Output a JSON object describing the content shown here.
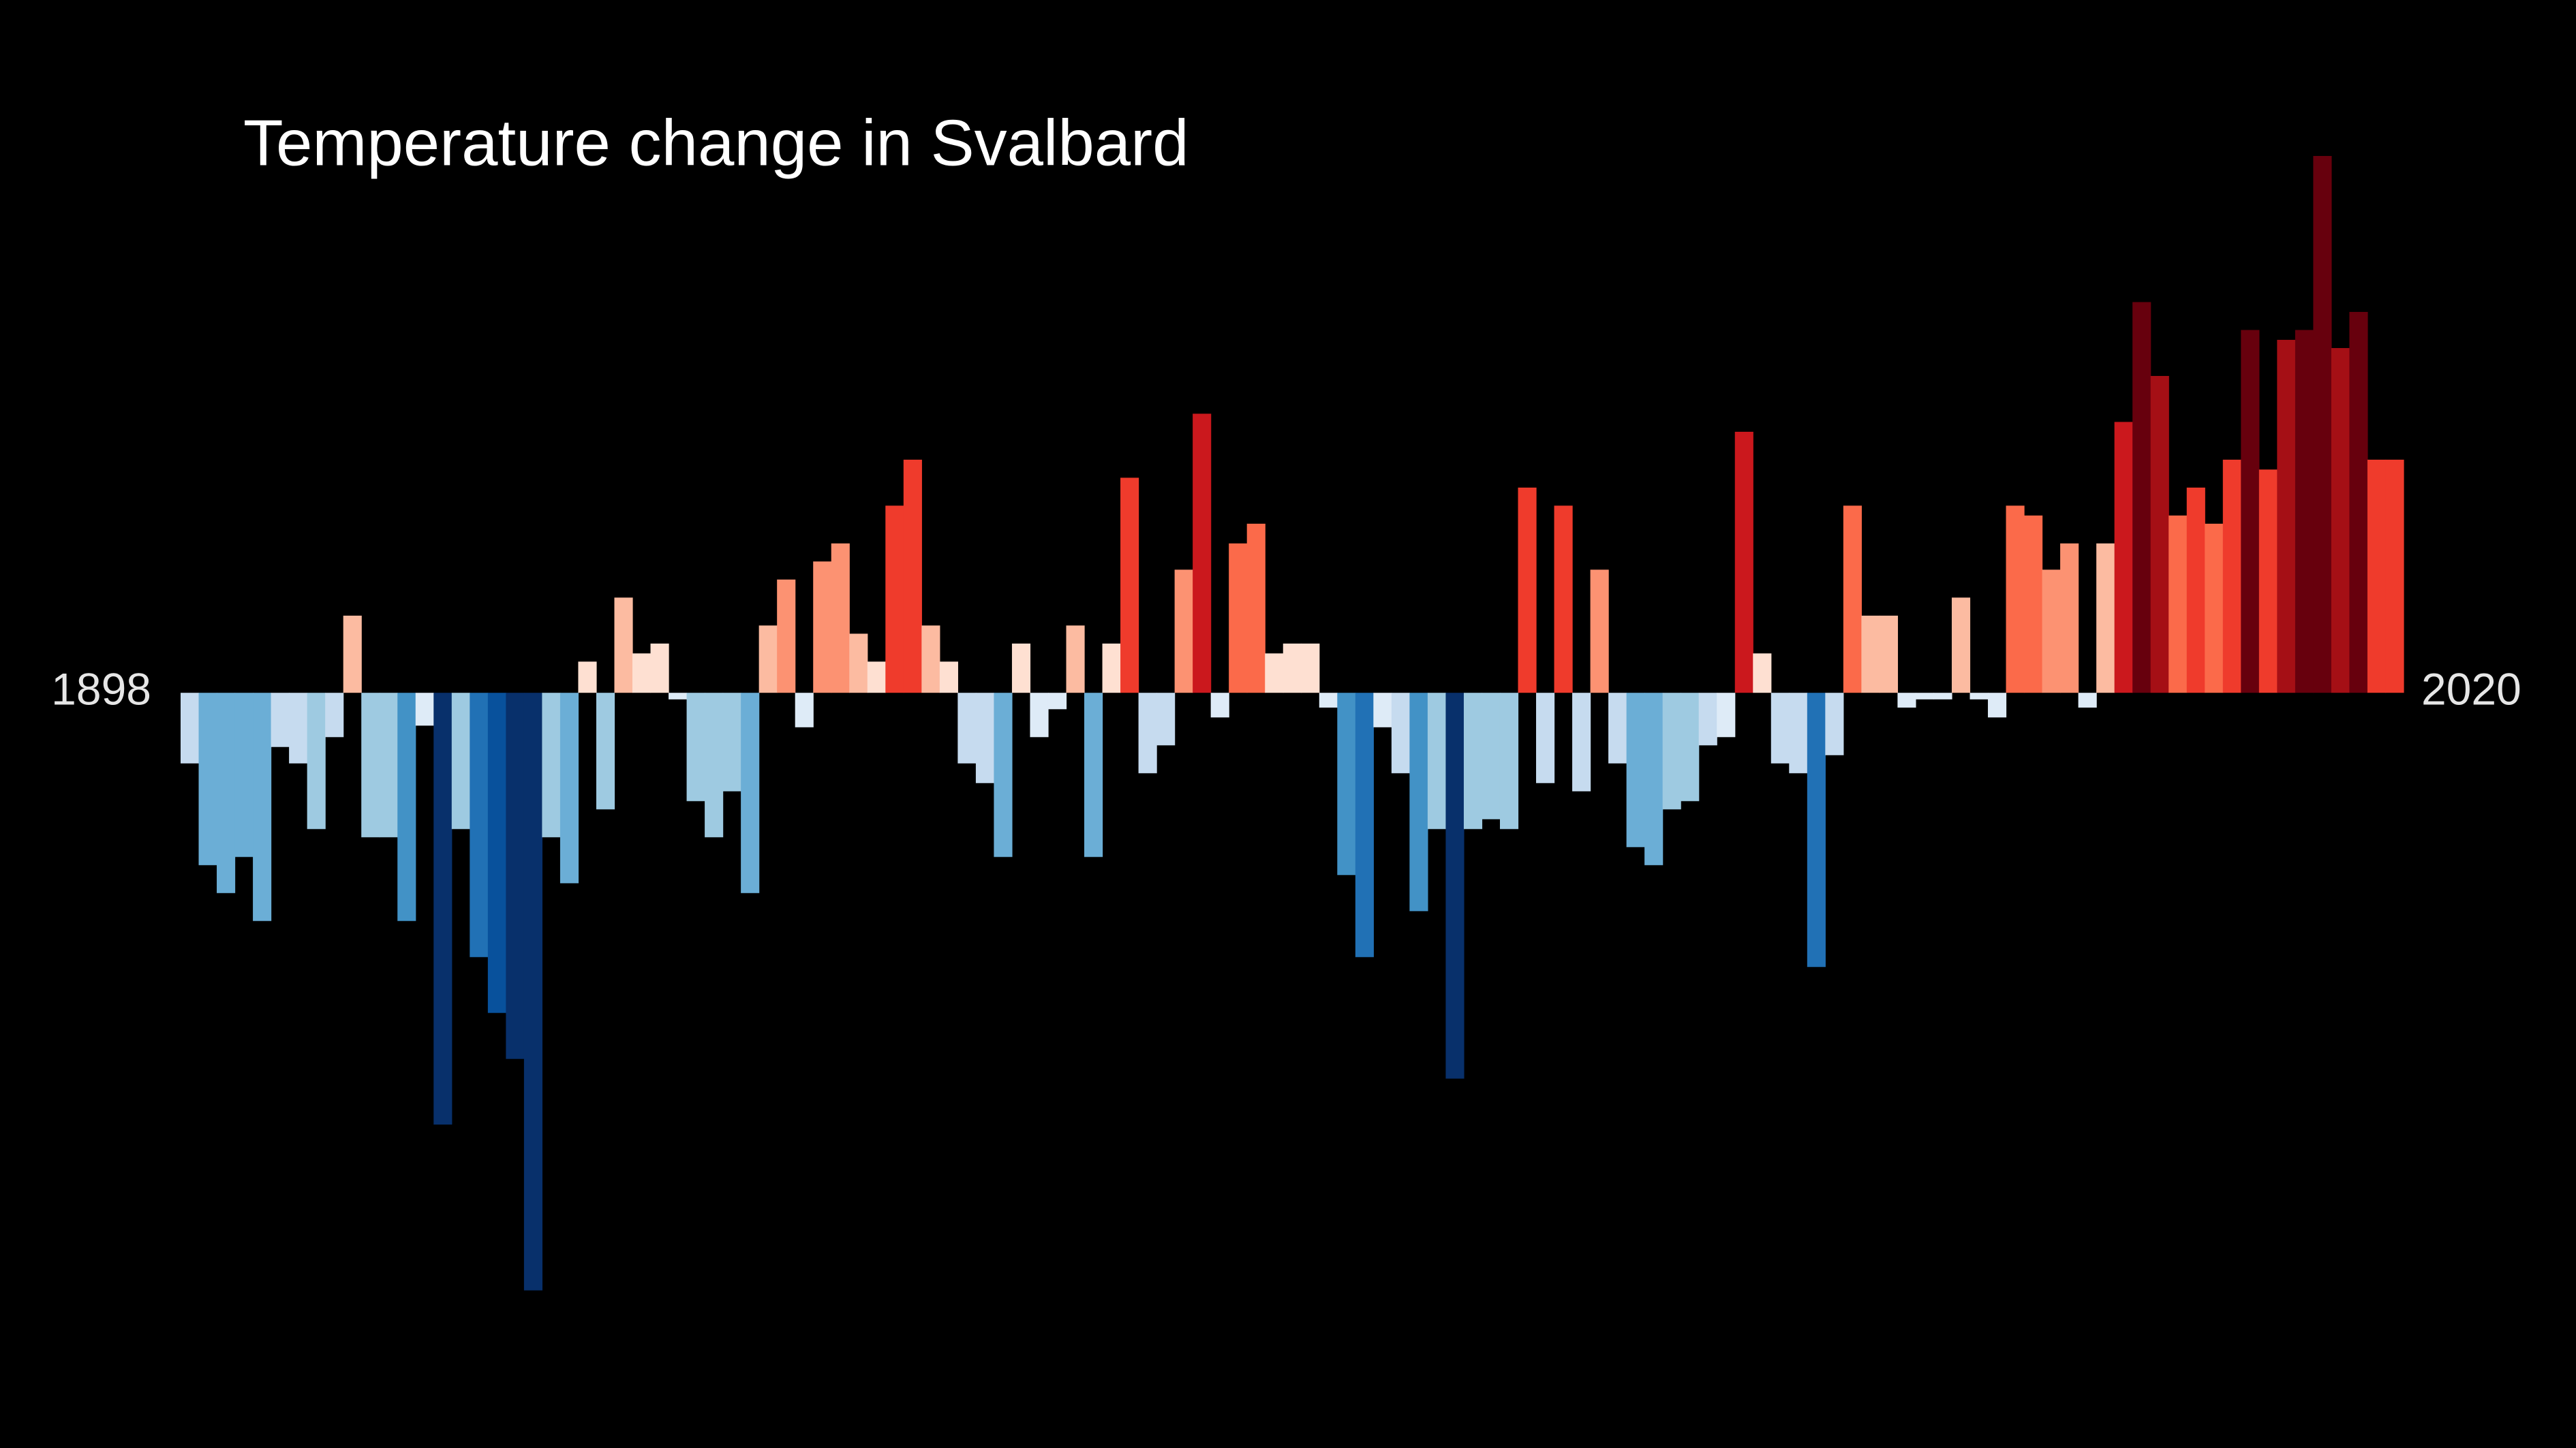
{
  "chart_data": {
    "type": "bar",
    "title": "Temperature change in Svalbard",
    "categories": [
      "1898",
      null,
      null,
      null,
      null,
      null,
      null,
      null,
      null,
      null,
      null,
      null,
      null,
      null,
      null,
      null,
      null,
      null,
      null,
      null,
      null,
      null,
      null,
      null,
      null,
      null,
      null,
      null,
      null,
      null,
      null,
      null,
      null,
      null,
      null,
      null,
      null,
      null,
      null,
      null,
      null,
      null,
      null,
      null,
      null,
      null,
      null,
      null,
      null,
      null,
      null,
      null,
      null,
      null,
      null,
      null,
      null,
      null,
      null,
      null,
      null,
      null,
      null,
      null,
      null,
      null,
      null,
      null,
      null,
      null,
      null,
      null,
      null,
      null,
      null,
      null,
      null,
      null,
      null,
      null,
      null,
      null,
      null,
      null,
      null,
      null,
      null,
      null,
      null,
      null,
      null,
      null,
      null,
      null,
      null,
      null,
      null,
      null,
      null,
      null,
      null,
      null,
      null,
      null,
      null,
      null,
      null,
      null,
      null,
      null,
      null,
      null,
      null,
      null,
      null,
      null,
      null,
      null,
      null,
      null,
      null,
      null,
      "2020"
    ],
    "values": [
      -0.43,
      -1.05,
      -1.22,
      -1.0,
      -1.39,
      -0.33,
      -0.43,
      -0.83,
      -0.27,
      0.47,
      -0.88,
      -0.88,
      -1.39,
      -0.2,
      -2.63,
      -0.83,
      -1.61,
      -1.95,
      -2.23,
      -3.64,
      -0.88,
      -1.16,
      0.19,
      -0.71,
      0.58,
      0.24,
      0.3,
      -0.04,
      -0.66,
      -0.88,
      -0.6,
      -1.22,
      0.41,
      0.69,
      -0.21,
      0.8,
      0.91,
      0.36,
      0.19,
      1.14,
      1.42,
      0.41,
      0.19,
      -0.43,
      -0.55,
      -1.0,
      0.3,
      -0.27,
      -0.1,
      0.41,
      -1.0,
      0.3,
      1.31,
      -0.49,
      -0.32,
      0.75,
      1.7,
      -0.15,
      0.91,
      1.03,
      0.24,
      0.3,
      0.3,
      -0.09,
      -1.11,
      -1.61,
      -0.21,
      -0.49,
      -1.33,
      -0.83,
      -2.35,
      -0.83,
      -0.77,
      -0.83,
      1.25,
      -0.55,
      1.14,
      -0.6,
      0.75,
      -0.43,
      -0.94,
      -1.05,
      -0.71,
      -0.66,
      -0.32,
      -0.27,
      1.59,
      0.24,
      -0.43,
      -0.49,
      -1.67,
      -0.38,
      1.14,
      0.47,
      0.47,
      -0.09,
      -0.04,
      -0.04,
      0.58,
      -0.04,
      -0.15,
      1.14,
      1.08,
      0.75,
      0.91,
      -0.09,
      0.91,
      1.65,
      2.38,
      1.93,
      1.08,
      1.25,
      1.03,
      1.42,
      2.21,
      1.36,
      2.15,
      2.21,
      3.27,
      2.1,
      2.32,
      1.42,
      1.42
    ],
    "colors": [
      "#c6dbef",
      "#6baed6",
      "#6baed6",
      "#6baed6",
      "#6baed6",
      "#c6dbef",
      "#c6dbef",
      "#9ecae1",
      "#c6dbef",
      "#fcbba1",
      "#9ecae1",
      "#9ecae1",
      "#4292c6",
      "#deebf7",
      "#08306b",
      "#9ecae1",
      "#2171b5",
      "#08519c",
      "#08306b",
      "#08306b",
      "#9ecae1",
      "#6baed6",
      "#fee0d2",
      "#9ecae1",
      "#fcbba1",
      "#fee0d2",
      "#fee0d2",
      "#deebf7",
      "#9ecae1",
      "#9ecae1",
      "#9ecae1",
      "#6baed6",
      "#fcbba1",
      "#fc9272",
      "#deebf7",
      "#fc9272",
      "#fc9272",
      "#fcbba1",
      "#fee0d2",
      "#ef3b2c",
      "#ef3b2c",
      "#fcbba1",
      "#fee0d2",
      "#c6dbef",
      "#c6dbef",
      "#6baed6",
      "#fee0d2",
      "#deebf7",
      "#deebf7",
      "#fcbba1",
      "#6baed6",
      "#fee0d2",
      "#ef3b2c",
      "#c6dbef",
      "#c6dbef",
      "#fc9272",
      "#cb181d",
      "#deebf7",
      "#fb6a4a",
      "#fb6a4a",
      "#fee0d2",
      "#fee0d2",
      "#fee0d2",
      "#deebf7",
      "#4292c6",
      "#2171b5",
      "#deebf7",
      "#c6dbef",
      "#4292c6",
      "#9ecae1",
      "#08306b",
      "#9ecae1",
      "#9ecae1",
      "#9ecae1",
      "#ef3b2c",
      "#c6dbef",
      "#ef3b2c",
      "#c6dbef",
      "#fc9272",
      "#c6dbef",
      "#6baed6",
      "#6baed6",
      "#9ecae1",
      "#9ecae1",
      "#c6dbef",
      "#deebf7",
      "#cb181d",
      "#fee0d2",
      "#c6dbef",
      "#c6dbef",
      "#2171b5",
      "#c6dbef",
      "#fb6a4a",
      "#fcbba1",
      "#fcbba1",
      "#deebf7",
      "#deebf7",
      "#deebf7",
      "#fcbba1",
      "#deebf7",
      "#deebf7",
      "#fb6a4a",
      "#fb6a4a",
      "#fc9272",
      "#fc9272",
      "#deebf7",
      "#fcbba1",
      "#cb181d",
      "#67000d",
      "#a50f15",
      "#fb6a4a",
      "#ef3b2c",
      "#fb6a4a",
      "#ef3b2c",
      "#67000d",
      "#ef3b2c",
      "#a50f15",
      "#67000d",
      "#67000d",
      "#a50f15",
      "#67000d",
      "#ef3b2c",
      "#ef3b2c"
    ],
    "ylim": [
      -4.6,
      4.22
    ]
  }
}
